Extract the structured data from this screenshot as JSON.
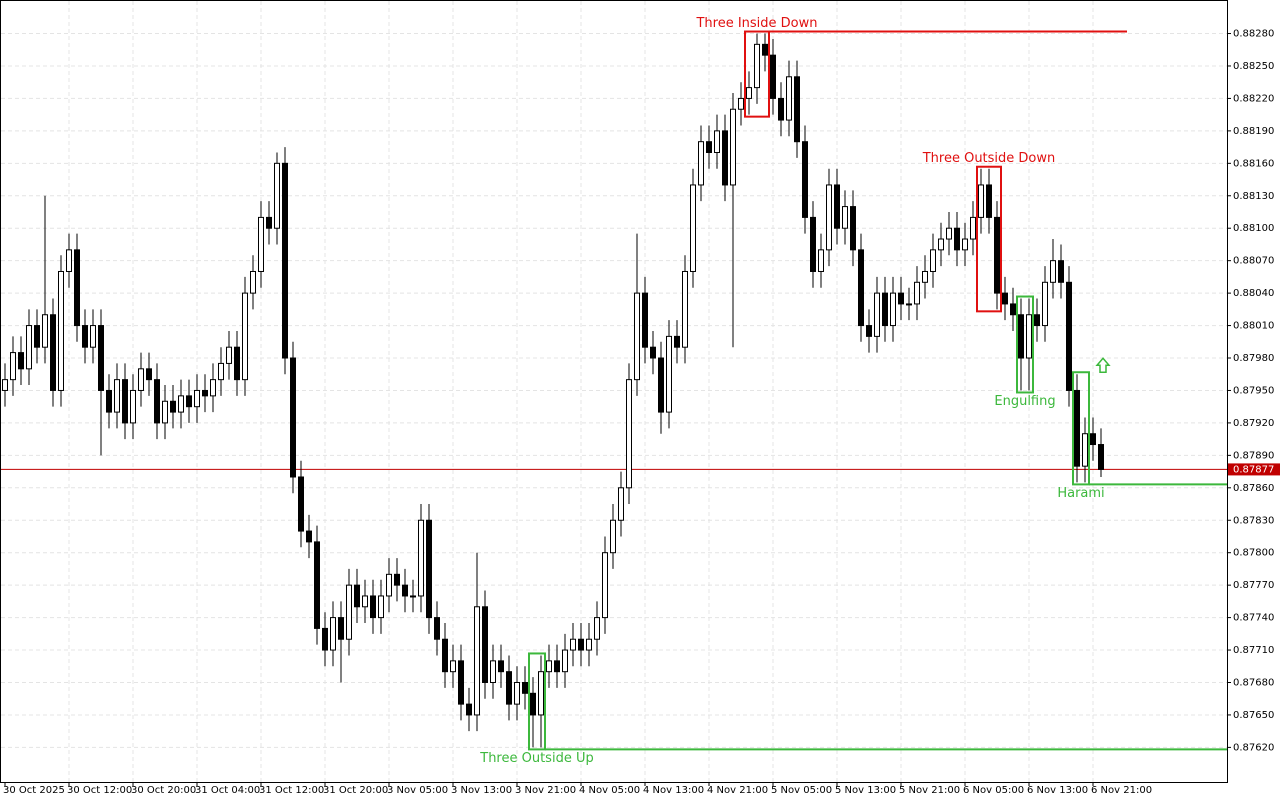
{
  "chart_data": {
    "type": "candlestick",
    "ylim": [
      0.87588,
      0.88311
    ],
    "yticks": [
      {
        "value": 0.8762,
        "label": "0.87620"
      },
      {
        "value": 0.8765,
        "label": "0.87650"
      },
      {
        "value": 0.8768,
        "label": "0.87680"
      },
      {
        "value": 0.8771,
        "label": "0.87710"
      },
      {
        "value": 0.8774,
        "label": "0.87740"
      },
      {
        "value": 0.8777,
        "label": "0.87770"
      },
      {
        "value": 0.878,
        "label": "0.87800"
      },
      {
        "value": 0.8783,
        "label": "0.87830"
      },
      {
        "value": 0.8786,
        "label": "0.87860"
      },
      {
        "value": 0.8789,
        "label": "0.87890"
      },
      {
        "value": 0.8792,
        "label": "0.87920"
      },
      {
        "value": 0.8795,
        "label": "0.87950"
      },
      {
        "value": 0.8798,
        "label": "0.87980"
      },
      {
        "value": 0.8801,
        "label": "0.88010"
      },
      {
        "value": 0.8804,
        "label": "0.88040"
      },
      {
        "value": 0.8807,
        "label": "0.88070"
      },
      {
        "value": 0.881,
        "label": "0.88100"
      },
      {
        "value": 0.8813,
        "label": "0.88130"
      },
      {
        "value": 0.8816,
        "label": "0.88160"
      },
      {
        "value": 0.8819,
        "label": "0.88190"
      },
      {
        "value": 0.8822,
        "label": "0.88220"
      },
      {
        "value": 0.8825,
        "label": "0.88250"
      },
      {
        "value": 0.8828,
        "label": "0.88280"
      }
    ],
    "grid": true,
    "current_price": 0.87877,
    "current_price_color": "#c00000",
    "bull_color": "#ffffff",
    "bear_color": "#000000",
    "categories": [
      "30 Oct 2025",
      null,
      null,
      null,
      null,
      null,
      null,
      null,
      "30 Oct 12:00",
      null,
      null,
      null,
      null,
      null,
      null,
      null,
      "30 Oct 20:00",
      null,
      null,
      null,
      null,
      null,
      null,
      null,
      "31 Oct 04:00",
      null,
      null,
      null,
      null,
      null,
      null,
      null,
      "31 Oct 12:00",
      null,
      null,
      null,
      null,
      null,
      null,
      null,
      "31 Oct 20:00",
      null,
      null,
      null,
      null,
      null,
      null,
      null,
      "3 Nov 05:00",
      null,
      null,
      null,
      null,
      null,
      null,
      null,
      "3 Nov 13:00",
      null,
      null,
      null,
      null,
      null,
      null,
      null,
      "3 Nov 21:00",
      null,
      null,
      null,
      null,
      null,
      null,
      null,
      "4 Nov 05:00",
      null,
      null,
      null,
      null,
      null,
      null,
      null,
      "4 Nov 13:00",
      null,
      null,
      null,
      null,
      null,
      null,
      null,
      "4 Nov 21:00",
      null,
      null,
      null,
      null,
      null,
      null,
      null,
      "5 Nov 05:00",
      null,
      null,
      null,
      null,
      null,
      null,
      null,
      "5 Nov 13:00",
      null,
      null,
      null,
      null,
      null,
      null,
      null,
      "5 Nov 21:00",
      null,
      null,
      null,
      null,
      null,
      null,
      null,
      "6 Nov 05:00",
      null,
      null,
      null,
      null,
      null,
      null,
      null,
      "6 Nov 13:00",
      null,
      null,
      null,
      null,
      null,
      null,
      null,
      "6 Nov 21:00",
      null
    ],
    "candles": [
      [
        0.8795,
        0.87975,
        0.87935,
        0.8796
      ],
      [
        0.8796,
        0.88,
        0.87945,
        0.87985
      ],
      [
        0.87985,
        0.88,
        0.87955,
        0.8797
      ],
      [
        0.8797,
        0.88025,
        0.87955,
        0.8801
      ],
      [
        0.8801,
        0.88025,
        0.87975,
        0.8799
      ],
      [
        0.8799,
        0.8813,
        0.87975,
        0.8802
      ],
      [
        0.8802,
        0.88035,
        0.87935,
        0.8795
      ],
      [
        0.8795,
        0.88075,
        0.87935,
        0.8806
      ],
      [
        0.8806,
        0.88095,
        0.88045,
        0.8808
      ],
      [
        0.8808,
        0.88095,
        0.87995,
        0.8801
      ],
      [
        0.8801,
        0.88025,
        0.87975,
        0.8799
      ],
      [
        0.8799,
        0.88025,
        0.87975,
        0.8801
      ],
      [
        0.8801,
        0.88025,
        0.8789,
        0.8795
      ],
      [
        0.8795,
        0.87965,
        0.87915,
        0.8793
      ],
      [
        0.8793,
        0.87975,
        0.87915,
        0.8796
      ],
      [
        0.8796,
        0.87975,
        0.87905,
        0.8792
      ],
      [
        0.8792,
        0.87965,
        0.87905,
        0.8795
      ],
      [
        0.8795,
        0.87985,
        0.87935,
        0.8797
      ],
      [
        0.8797,
        0.87985,
        0.87945,
        0.8796
      ],
      [
        0.8796,
        0.87975,
        0.87905,
        0.8792
      ],
      [
        0.8792,
        0.87955,
        0.87905,
        0.8794
      ],
      [
        0.8794,
        0.87955,
        0.87915,
        0.8793
      ],
      [
        0.8793,
        0.8796,
        0.87915,
        0.87945
      ],
      [
        0.87945,
        0.8796,
        0.8792,
        0.87935
      ],
      [
        0.87935,
        0.87965,
        0.8792,
        0.8795
      ],
      [
        0.8795,
        0.87965,
        0.8793,
        0.87945
      ],
      [
        0.87945,
        0.87975,
        0.8793,
        0.8796
      ],
      [
        0.8796,
        0.8799,
        0.87945,
        0.87975
      ],
      [
        0.87975,
        0.88005,
        0.8796,
        0.8799
      ],
      [
        0.8799,
        0.88005,
        0.87945,
        0.8796
      ],
      [
        0.8796,
        0.88055,
        0.87945,
        0.8804
      ],
      [
        0.8804,
        0.88075,
        0.88025,
        0.8806
      ],
      [
        0.8806,
        0.88125,
        0.88045,
        0.8811
      ],
      [
        0.8811,
        0.88125,
        0.88085,
        0.881
      ],
      [
        0.881,
        0.8817,
        0.88085,
        0.8816
      ],
      [
        0.8816,
        0.88175,
        0.87965,
        0.8798
      ],
      [
        0.8798,
        0.87995,
        0.87855,
        0.8787
      ],
      [
        0.8787,
        0.87885,
        0.87805,
        0.8782
      ],
      [
        0.8782,
        0.87835,
        0.87795,
        0.8781
      ],
      [
        0.8781,
        0.87825,
        0.87715,
        0.8773
      ],
      [
        0.8773,
        0.87745,
        0.87695,
        0.8771
      ],
      [
        0.8771,
        0.87755,
        0.87695,
        0.8774
      ],
      [
        0.8774,
        0.87755,
        0.8768,
        0.8772
      ],
      [
        0.8772,
        0.87785,
        0.87705,
        0.8777
      ],
      [
        0.8777,
        0.87785,
        0.87735,
        0.8775
      ],
      [
        0.8775,
        0.87775,
        0.87735,
        0.8776
      ],
      [
        0.8776,
        0.87775,
        0.87725,
        0.8774
      ],
      [
        0.8774,
        0.87775,
        0.87725,
        0.8776
      ],
      [
        0.8776,
        0.87795,
        0.87745,
        0.8778
      ],
      [
        0.8778,
        0.87795,
        0.87755,
        0.8777
      ],
      [
        0.8777,
        0.87785,
        0.87745,
        0.8776
      ],
      [
        0.8776,
        0.87775,
        0.87745,
        0.8776
      ],
      [
        0.8776,
        0.87845,
        0.87745,
        0.8783
      ],
      [
        0.8783,
        0.87845,
        0.87725,
        0.8774
      ],
      [
        0.8774,
        0.87755,
        0.87705,
        0.8772
      ],
      [
        0.8772,
        0.87735,
        0.87675,
        0.8769
      ],
      [
        0.8769,
        0.87715,
        0.87675,
        0.877
      ],
      [
        0.877,
        0.87715,
        0.87645,
        0.8766
      ],
      [
        0.8766,
        0.87675,
        0.87635,
        0.8765
      ],
      [
        0.8765,
        0.878,
        0.87635,
        0.8775
      ],
      [
        0.8775,
        0.87765,
        0.87665,
        0.8768
      ],
      [
        0.8768,
        0.87715,
        0.87665,
        0.877
      ],
      [
        0.877,
        0.87715,
        0.87675,
        0.8769
      ],
      [
        0.8769,
        0.87705,
        0.87645,
        0.8766
      ],
      [
        0.8766,
        0.87695,
        0.87645,
        0.8768
      ],
      [
        0.8768,
        0.87695,
        0.87655,
        0.8767
      ],
      [
        0.8767,
        0.87685,
        0.8762,
        0.8765
      ],
      [
        0.8765,
        0.87705,
        0.8762,
        0.8769
      ],
      [
        0.8769,
        0.87715,
        0.87675,
        0.877
      ],
      [
        0.877,
        0.87715,
        0.87675,
        0.8769
      ],
      [
        0.8769,
        0.87725,
        0.87675,
        0.8771
      ],
      [
        0.8771,
        0.87735,
        0.87695,
        0.8772
      ],
      [
        0.8772,
        0.87735,
        0.87695,
        0.8771
      ],
      [
        0.8771,
        0.87735,
        0.87695,
        0.8772
      ],
      [
        0.8772,
        0.87755,
        0.87705,
        0.8774
      ],
      [
        0.8774,
        0.87815,
        0.87725,
        0.878
      ],
      [
        0.878,
        0.87845,
        0.87785,
        0.8783
      ],
      [
        0.8783,
        0.87875,
        0.87815,
        0.8786
      ],
      [
        0.8786,
        0.87975,
        0.87845,
        0.8796
      ],
      [
        0.8796,
        0.88095,
        0.87945,
        0.8804
      ],
      [
        0.8804,
        0.88055,
        0.87975,
        0.8799
      ],
      [
        0.8799,
        0.88005,
        0.87965,
        0.8798
      ],
      [
        0.8798,
        0.87995,
        0.8791,
        0.8793
      ],
      [
        0.8793,
        0.88015,
        0.87915,
        0.88
      ],
      [
        0.88,
        0.88015,
        0.87975,
        0.8799
      ],
      [
        0.8799,
        0.88075,
        0.87975,
        0.8806
      ],
      [
        0.8806,
        0.88155,
        0.88045,
        0.8814
      ],
      [
        0.8814,
        0.88195,
        0.88125,
        0.8818
      ],
      [
        0.8818,
        0.88195,
        0.88155,
        0.8817
      ],
      [
        0.8817,
        0.88205,
        0.88155,
        0.8819
      ],
      [
        0.8819,
        0.88205,
        0.88125,
        0.8814
      ],
      [
        0.8814,
        0.88225,
        0.8799,
        0.8821
      ],
      [
        0.8821,
        0.88235,
        0.88195,
        0.8822
      ],
      [
        0.8822,
        0.88245,
        0.88205,
        0.8823
      ],
      [
        0.8823,
        0.8828,
        0.88215,
        0.8827
      ],
      [
        0.8827,
        0.8828,
        0.88245,
        0.8826
      ],
      [
        0.8826,
        0.88275,
        0.88205,
        0.8822
      ],
      [
        0.8822,
        0.88235,
        0.88185,
        0.882
      ],
      [
        0.882,
        0.88255,
        0.88185,
        0.8824
      ],
      [
        0.8824,
        0.88255,
        0.88165,
        0.8818
      ],
      [
        0.8818,
        0.88195,
        0.88095,
        0.8811
      ],
      [
        0.8811,
        0.88125,
        0.88045,
        0.8806
      ],
      [
        0.8806,
        0.88095,
        0.88045,
        0.8808
      ],
      [
        0.8808,
        0.88155,
        0.88065,
        0.8814
      ],
      [
        0.8814,
        0.88155,
        0.88085,
        0.881
      ],
      [
        0.881,
        0.88135,
        0.88085,
        0.8812
      ],
      [
        0.8812,
        0.88135,
        0.88065,
        0.8808
      ],
      [
        0.8808,
        0.88095,
        0.87995,
        0.8801
      ],
      [
        0.8801,
        0.88025,
        0.87985,
        0.88
      ],
      [
        0.88,
        0.88055,
        0.87985,
        0.8804
      ],
      [
        0.8804,
        0.88055,
        0.87995,
        0.8801
      ],
      [
        0.8801,
        0.88055,
        0.87995,
        0.8804
      ],
      [
        0.8804,
        0.88055,
        0.88015,
        0.8803
      ],
      [
        0.8803,
        0.88045,
        0.88015,
        0.8803
      ],
      [
        0.8803,
        0.88065,
        0.88015,
        0.8805
      ],
      [
        0.8805,
        0.88075,
        0.88035,
        0.8806
      ],
      [
        0.8806,
        0.88095,
        0.88045,
        0.8808
      ],
      [
        0.8808,
        0.88105,
        0.88065,
        0.8809
      ],
      [
        0.8809,
        0.88115,
        0.88075,
        0.881
      ],
      [
        0.881,
        0.88115,
        0.88065,
        0.8808
      ],
      [
        0.8808,
        0.88105,
        0.88065,
        0.8809
      ],
      [
        0.8809,
        0.88125,
        0.88075,
        0.8811
      ],
      [
        0.8811,
        0.88155,
        0.88095,
        0.8814
      ],
      [
        0.8814,
        0.88155,
        0.88095,
        0.8811
      ],
      [
        0.8811,
        0.88125,
        0.88025,
        0.8804
      ],
      [
        0.8804,
        0.88055,
        0.88015,
        0.8803
      ],
      [
        0.8803,
        0.88045,
        0.88005,
        0.8802
      ],
      [
        0.8802,
        0.88035,
        0.8795,
        0.8798
      ],
      [
        0.8798,
        0.88035,
        0.8795,
        0.8802
      ],
      [
        0.8802,
        0.88035,
        0.87995,
        0.8801
      ],
      [
        0.8801,
        0.88065,
        0.87995,
        0.8805
      ],
      [
        0.8805,
        0.8809,
        0.88035,
        0.8807
      ],
      [
        0.8807,
        0.88085,
        0.88035,
        0.8805
      ],
      [
        0.8805,
        0.88065,
        0.87935,
        0.8795
      ],
      [
        0.8795,
        0.87965,
        0.87865,
        0.8788
      ],
      [
        0.8788,
        0.87925,
        0.87865,
        0.8791
      ],
      [
        0.8791,
        0.87925,
        0.87885,
        0.879
      ],
      [
        0.879,
        0.87915,
        0.8787,
        0.87877
      ]
    ],
    "patterns": [
      {
        "label": "Three Outside Up",
        "color": "#3cb83c",
        "candles": [
          66,
          67
        ],
        "direction": "up",
        "extend": true
      },
      {
        "label": "Three Inside Down",
        "color": "#e01010",
        "candles": [
          93,
          95
        ],
        "direction": "down",
        "extend": true
      },
      {
        "label": "Three Outside Down",
        "color": "#e01010",
        "candles": [
          122,
          124
        ],
        "direction": "down",
        "extend": false
      },
      {
        "label": "Engulfing",
        "color": "#3cb83c",
        "candles": [
          127,
          128
        ],
        "direction": "up",
        "extend": false
      },
      {
        "label": "Harami",
        "color": "#3cb83c",
        "candles": [
          134,
          135
        ],
        "direction": "up",
        "extend": true
      }
    ]
  }
}
